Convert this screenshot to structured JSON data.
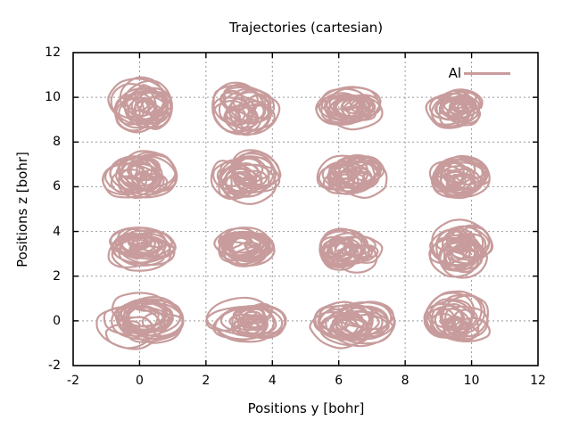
{
  "chart_data": {
    "type": "line",
    "title": "Trajectories (cartesian)",
    "xlabel": "Positions y [bohr]",
    "ylabel": "Positions z [bohr]",
    "xlim": [
      -2,
      12
    ],
    "ylim": [
      -2,
      12
    ],
    "xticks": [
      -2,
      0,
      2,
      4,
      6,
      8,
      10,
      12
    ],
    "yticks": [
      -2,
      0,
      2,
      4,
      6,
      8,
      10,
      12
    ],
    "grid": true,
    "grid_style": "dotted",
    "grid_color": "#999999",
    "axis_color": "#000000",
    "background_color": "#ffffff",
    "legend_position": "inside-top-right",
    "legend": [
      {
        "label": "Al",
        "color": "#c89c9c"
      }
    ],
    "series": [
      {
        "name": "Al",
        "kind": "trajectory-scribble-clusters",
        "color": "#c89c9c",
        "cluster_centers_y": [
          0,
          3.2,
          6.4,
          9.6
        ],
        "cluster_centers_z": [
          0,
          3.2,
          6.4,
          9.6
        ],
        "cluster_half_width_bohr": 1.15,
        "cluster_half_height_bohr": 1.2,
        "description": "16 dense random-walk trajectory blobs (one per Al atom) arranged on a 4x4 lattice"
      }
    ]
  }
}
